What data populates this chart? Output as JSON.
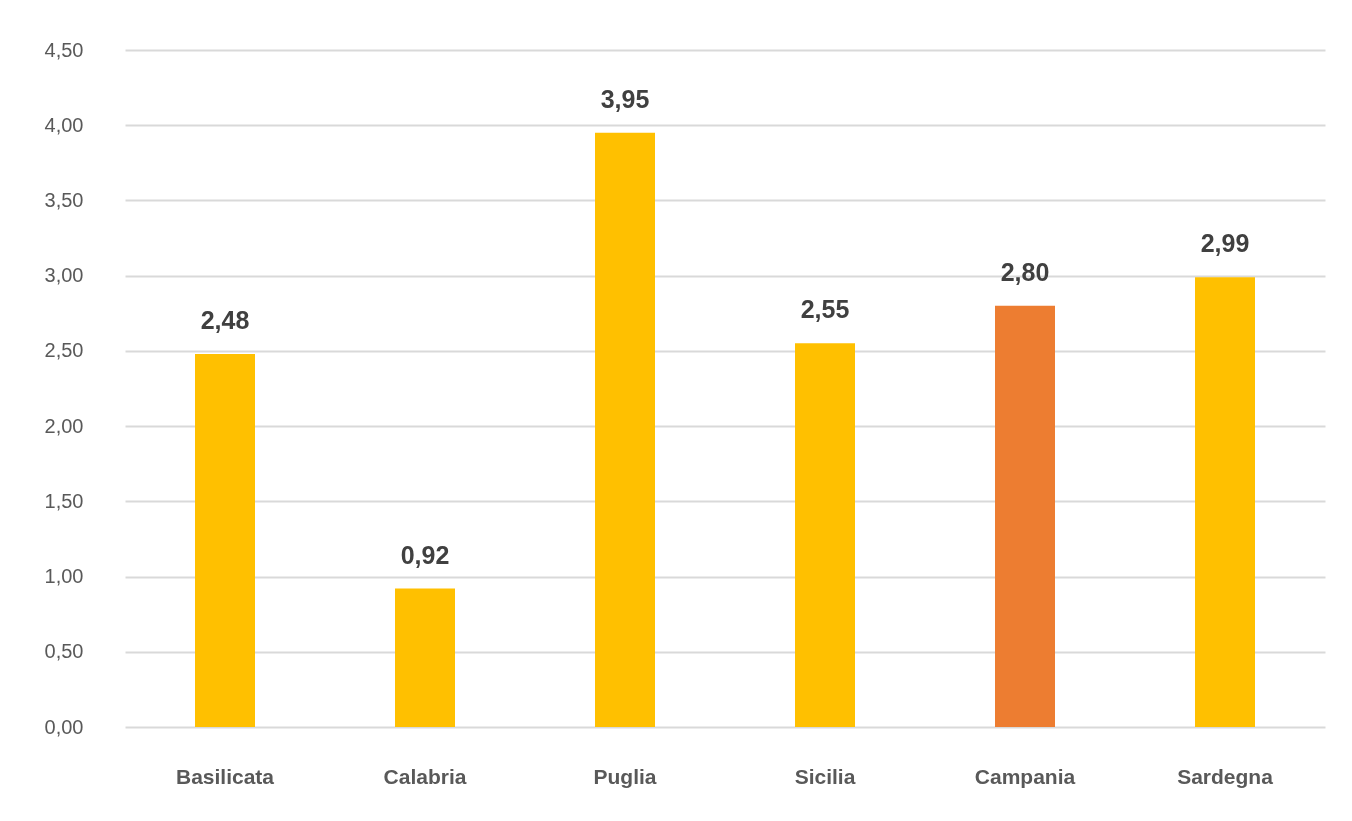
{
  "chart_data": {
    "type": "bar",
    "categories": [
      "Basilicata",
      "Calabria",
      "Puglia",
      "Sicilia",
      "Campania",
      "Sardegna"
    ],
    "values": [
      2.48,
      0.92,
      3.95,
      2.55,
      2.8,
      2.99
    ],
    "colors": [
      "#ffc000",
      "#ffc000",
      "#ffc000",
      "#ffc000",
      "#ed7d31",
      "#ffc000"
    ],
    "value_labels": [
      "2,48",
      "0,92",
      "3,95",
      "2,55",
      "2,80",
      "2,99"
    ],
    "ylim": [
      0,
      4.5
    ],
    "yticks": [
      {
        "value": 0,
        "label": "0,00"
      },
      {
        "value": 0.5,
        "label": "0,50"
      },
      {
        "value": 1,
        "label": "1,00"
      },
      {
        "value": 1.5,
        "label": "1,50"
      },
      {
        "value": 2,
        "label": "2,00"
      },
      {
        "value": 2.5,
        "label": "2,50"
      },
      {
        "value": 3,
        "label": "3,00"
      },
      {
        "value": 3.5,
        "label": "3,50"
      },
      {
        "value": 4,
        "label": "4,00"
      },
      {
        "value": 4.5,
        "label": "4,50"
      }
    ],
    "grid": "y",
    "legend": false
  }
}
